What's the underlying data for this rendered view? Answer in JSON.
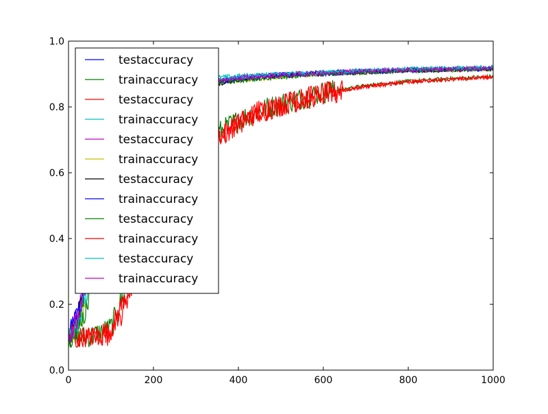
{
  "chart_data": {
    "type": "line",
    "title": "",
    "xlabel": "",
    "ylabel": "",
    "xlim": [
      0,
      1000
    ],
    "ylim": [
      0.0,
      1.0
    ],
    "x_ticks": [
      0,
      200,
      400,
      600,
      800,
      1000
    ],
    "y_ticks": [
      0.0,
      0.2,
      0.4,
      0.6,
      0.8,
      1.0
    ],
    "x_tick_labels": [
      "0",
      "200",
      "400",
      "600",
      "800",
      "1000"
    ],
    "y_tick_labels": [
      "0.0",
      "0.2",
      "0.4",
      "0.6",
      "0.8",
      "1.0"
    ],
    "grid": false,
    "legend_position": "upper-left",
    "series": [
      {
        "name": "testaccuracy",
        "color": "#0000ff",
        "x": [
          0,
          20,
          40,
          60,
          80,
          100,
          150,
          200,
          250,
          300,
          350,
          400,
          500,
          600,
          700,
          800,
          900,
          1000
        ],
        "y": [
          0.1,
          0.17,
          0.26,
          0.4,
          0.55,
          0.68,
          0.79,
          0.84,
          0.86,
          0.87,
          0.88,
          0.89,
          0.9,
          0.905,
          0.91,
          0.915,
          0.915,
          0.92
        ]
      },
      {
        "name": "trainaccuracy",
        "color": "#008000",
        "x": [
          0,
          50,
          100,
          150,
          200,
          250,
          300,
          350,
          400,
          450,
          500,
          600,
          700,
          800,
          900,
          1000
        ],
        "y": [
          0.1,
          0.1,
          0.13,
          0.3,
          0.45,
          0.55,
          0.64,
          0.72,
          0.76,
          0.79,
          0.81,
          0.845,
          0.865,
          0.878,
          0.886,
          0.893
        ]
      },
      {
        "name": "testaccuracy",
        "color": "#ff0000",
        "x": [
          0,
          50,
          100,
          150,
          200,
          250,
          300,
          350,
          400,
          450,
          500,
          600,
          700,
          800,
          900,
          1000
        ],
        "y": [
          0.1,
          0.1,
          0.12,
          0.28,
          0.44,
          0.54,
          0.63,
          0.71,
          0.75,
          0.785,
          0.805,
          0.84,
          0.862,
          0.876,
          0.884,
          0.891
        ]
      },
      {
        "name": "trainaccuracy",
        "color": "#00bfbf",
        "x": [
          0,
          20,
          40,
          60,
          80,
          100,
          150,
          200,
          250,
          300,
          350,
          400,
          500,
          600,
          700,
          800,
          900,
          1000
        ],
        "y": [
          0.09,
          0.14,
          0.24,
          0.38,
          0.52,
          0.66,
          0.79,
          0.85,
          0.87,
          0.88,
          0.89,
          0.895,
          0.9,
          0.905,
          0.91,
          0.915,
          0.918,
          0.92
        ]
      },
      {
        "name": "testaccuracy",
        "color": "#bf00bf",
        "x": [
          0,
          20,
          40,
          60,
          80,
          100,
          150,
          200,
          250,
          300,
          350,
          400,
          500,
          600,
          700,
          800,
          900,
          1000
        ],
        "y": [
          0.1,
          0.16,
          0.27,
          0.41,
          0.56,
          0.69,
          0.8,
          0.85,
          0.87,
          0.875,
          0.88,
          0.89,
          0.9,
          0.905,
          0.91,
          0.912,
          0.915,
          0.918
        ]
      },
      {
        "name": "trainaccuracy",
        "color": "#bfbf00",
        "x": [
          0,
          20,
          40,
          60,
          80,
          100,
          150,
          200,
          250,
          300,
          350,
          400,
          500,
          600,
          700,
          800,
          900,
          1000
        ],
        "y": [
          0.1,
          0.13,
          0.2,
          0.33,
          0.48,
          0.62,
          0.77,
          0.83,
          0.86,
          0.87,
          0.875,
          0.88,
          0.89,
          0.9,
          0.905,
          0.91,
          0.912,
          0.915
        ]
      },
      {
        "name": "testaccuracy",
        "color": "#000000",
        "x": [
          0,
          20,
          40,
          60,
          80,
          100,
          150,
          200,
          250,
          300,
          350,
          400,
          500,
          600,
          700,
          800,
          900,
          1000
        ],
        "y": [
          0.1,
          0.15,
          0.25,
          0.39,
          0.54,
          0.67,
          0.79,
          0.84,
          0.86,
          0.865,
          0.87,
          0.88,
          0.895,
          0.9,
          0.905,
          0.91,
          0.912,
          0.915
        ]
      },
      {
        "name": "trainaccuracy",
        "color": "#0000ff",
        "x": [
          0,
          20,
          40,
          60,
          80,
          100,
          150,
          200,
          250,
          300,
          350,
          400,
          500,
          600,
          700,
          800,
          900,
          1000
        ],
        "y": [
          0.1,
          0.16,
          0.26,
          0.4,
          0.55,
          0.68,
          0.79,
          0.84,
          0.86,
          0.87,
          0.875,
          0.885,
          0.895,
          0.9,
          0.905,
          0.91,
          0.913,
          0.915
        ]
      },
      {
        "name": "testaccuracy",
        "color": "#008000",
        "x": [
          0,
          20,
          40,
          60,
          80,
          100,
          150,
          200,
          250,
          300,
          350,
          400,
          500,
          600,
          700,
          800,
          900,
          1000
        ],
        "y": [
          0.1,
          0.12,
          0.18,
          0.3,
          0.44,
          0.58,
          0.75,
          0.82,
          0.85,
          0.865,
          0.875,
          0.88,
          0.89,
          0.9,
          0.905,
          0.91,
          0.912,
          0.915
        ]
      },
      {
        "name": "trainaccuracy",
        "color": "#ff0000",
        "x": [
          0,
          50,
          100,
          120,
          150,
          180,
          200,
          250,
          300,
          320,
          350,
          400,
          450,
          500,
          600,
          700,
          800,
          900,
          1000
        ],
        "y": [
          0.1,
          0.1,
          0.11,
          0.15,
          0.26,
          0.32,
          0.4,
          0.53,
          0.62,
          0.66,
          0.7,
          0.75,
          0.785,
          0.805,
          0.84,
          0.862,
          0.876,
          0.884,
          0.891
        ]
      },
      {
        "name": "testaccuracy",
        "color": "#00bfbf",
        "x": [
          0,
          20,
          40,
          60,
          80,
          100,
          150,
          200,
          250,
          300,
          350,
          400,
          500,
          600,
          700,
          800,
          900,
          1000
        ],
        "y": [
          0.09,
          0.14,
          0.22,
          0.36,
          0.5,
          0.64,
          0.78,
          0.85,
          0.87,
          0.88,
          0.885,
          0.89,
          0.9,
          0.905,
          0.91,
          0.915,
          0.918,
          0.92
        ]
      },
      {
        "name": "trainaccuracy",
        "color": "#bf00bf",
        "x": [
          0,
          20,
          40,
          60,
          80,
          100,
          150,
          200,
          250,
          300,
          350,
          400,
          500,
          600,
          700,
          800,
          900,
          1000
        ],
        "y": [
          0.1,
          0.16,
          0.27,
          0.42,
          0.57,
          0.7,
          0.8,
          0.85,
          0.87,
          0.875,
          0.88,
          0.885,
          0.895,
          0.9,
          0.908,
          0.912,
          0.915,
          0.918
        ]
      }
    ]
  }
}
